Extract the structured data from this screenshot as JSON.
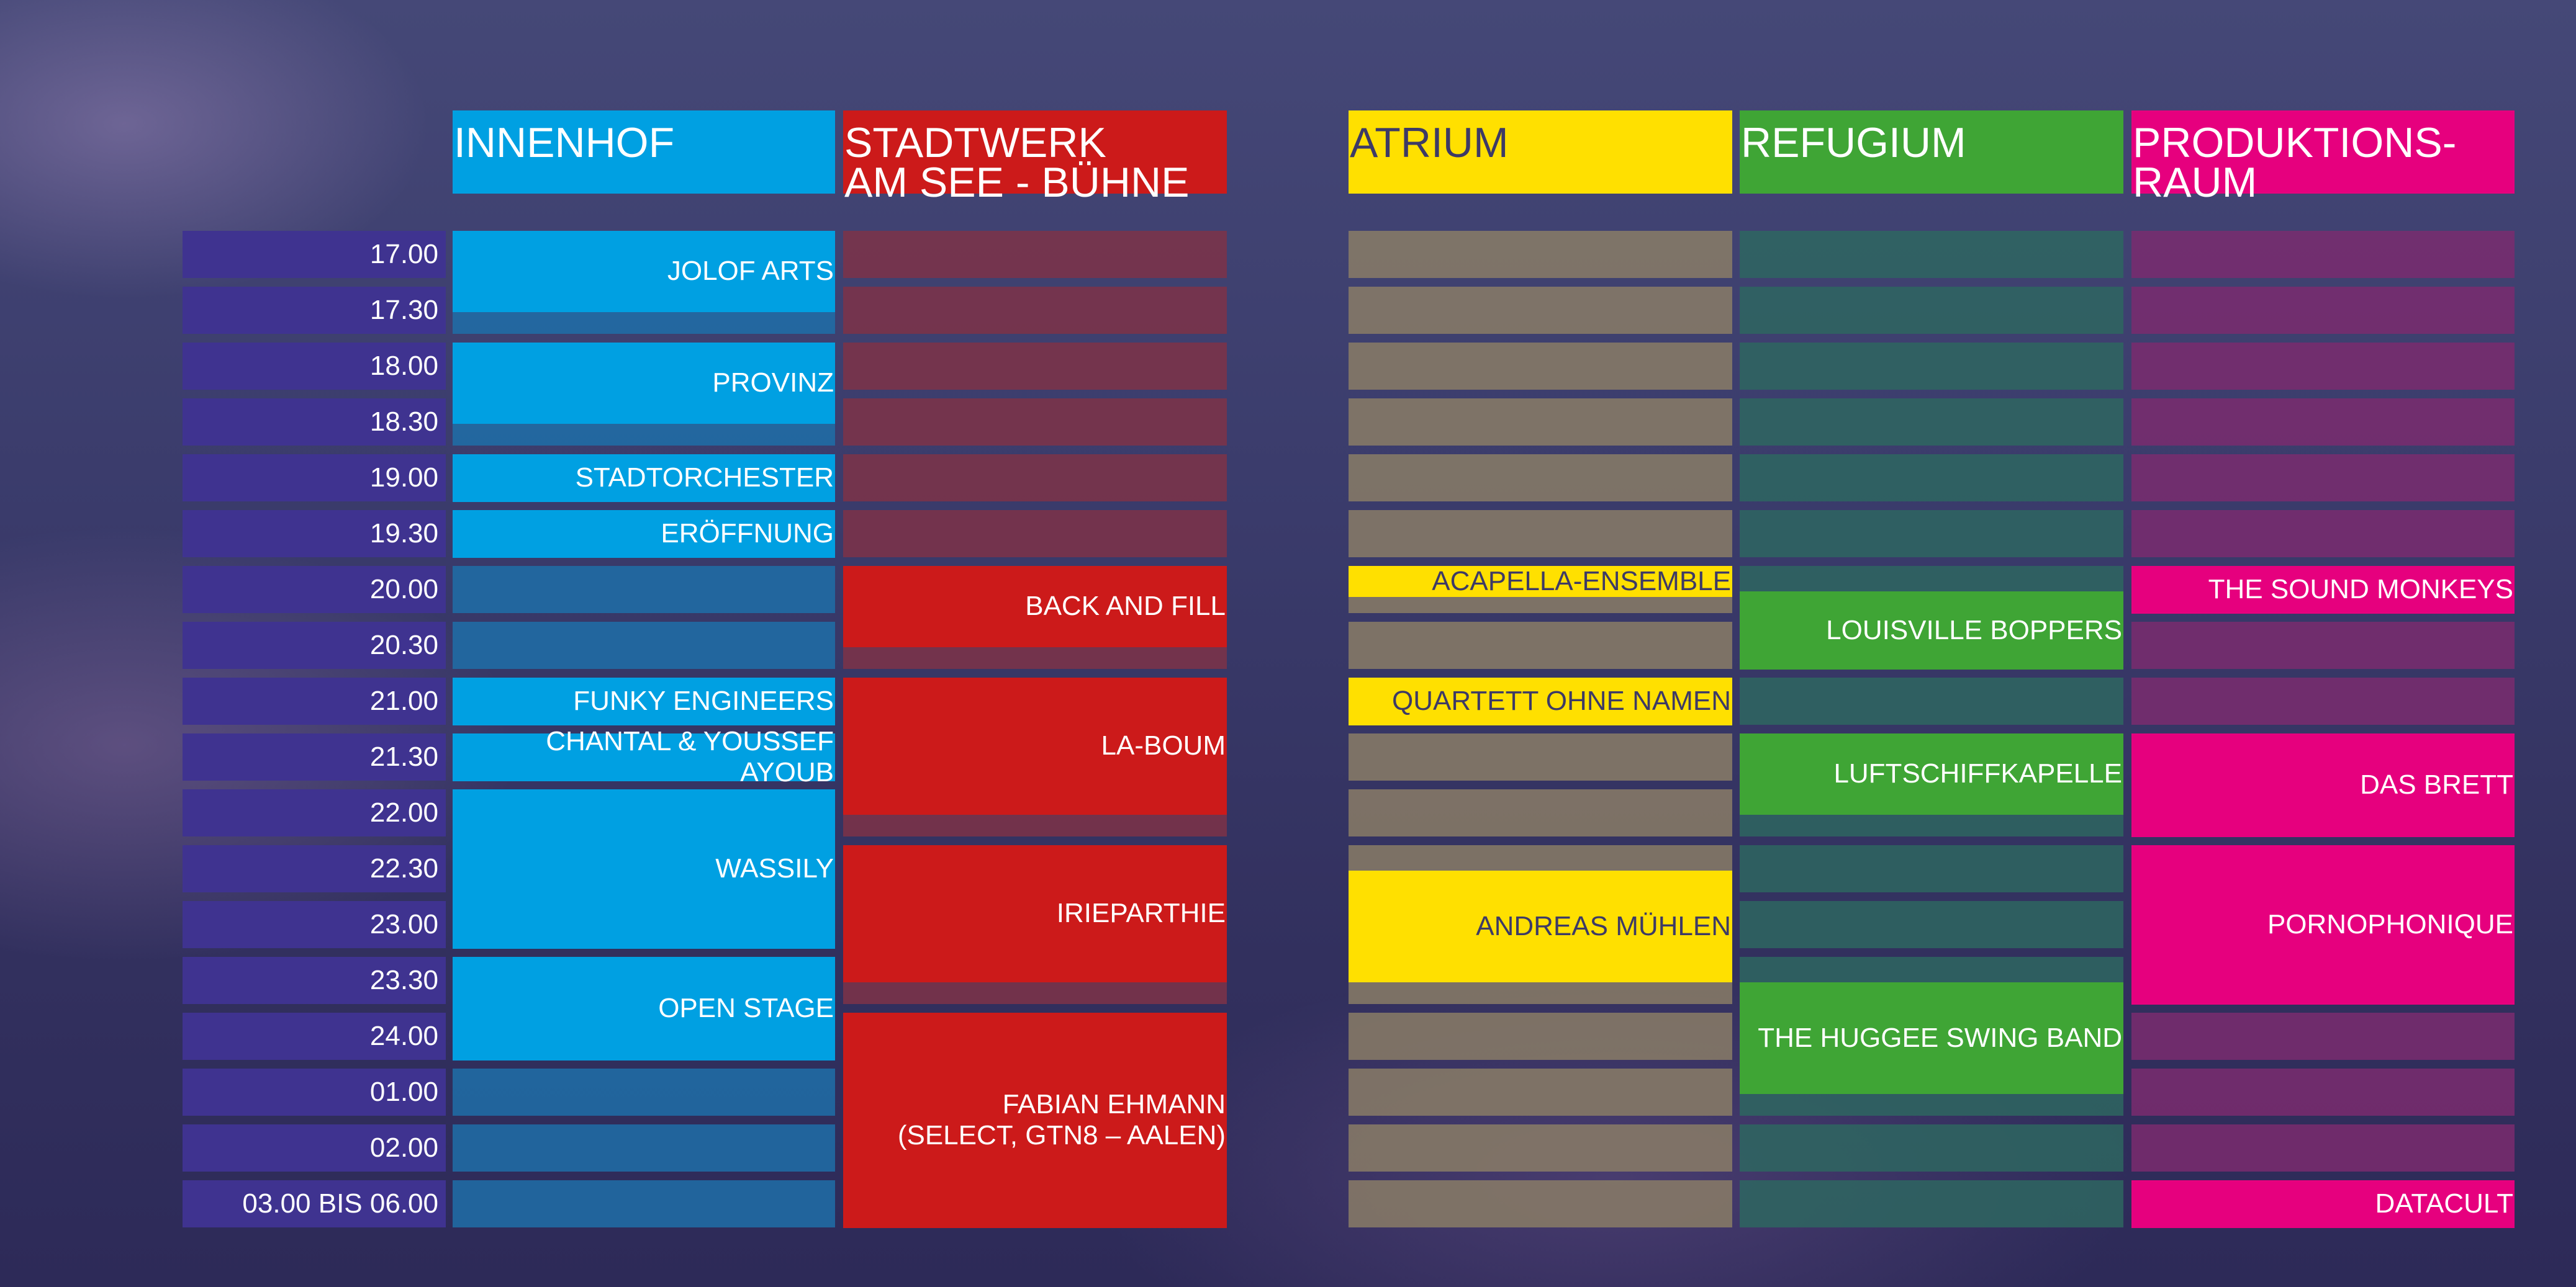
{
  "stages": [
    {
      "name": "INNENHOF",
      "color": "#00a0e2",
      "text_color": "#ffffff"
    },
    {
      "name": "STADTWERK\nAM SEE - BÜHNE",
      "color": "#cc1a1a",
      "text_color": "#ffffff"
    },
    {
      "name": "ATRIUM",
      "color": "#ffe000",
      "text_color": "#3d3a66"
    },
    {
      "name": "REFUGIUM",
      "color": "#3fa535",
      "text_color": "#ffffff"
    },
    {
      "name": "PRODUKTIONS-\nRAUM",
      "color": "#e6007e",
      "text_color": "#ffffff"
    }
  ],
  "times": [
    "17.00",
    "17.30",
    "18.00",
    "18.30",
    "19.00",
    "19.30",
    "20.00",
    "20.30",
    "21.00",
    "21.30",
    "22.00",
    "22.30",
    "23.00",
    "23.30",
    "24.00",
    "01.00",
    "02.00",
    "03.00 BIS 06.00"
  ],
  "events": {
    "innenhof": [
      {
        "label": "JOLOF ARTS",
        "start": 0,
        "end": 1.45
      },
      {
        "label": "PROVINZ",
        "start": 2,
        "end": 3.45
      },
      {
        "label": "STADTORCHESTER",
        "start": 4,
        "end": 4.85
      },
      {
        "label": "ERÖFFNUNG",
        "start": 5,
        "end": 5.85
      },
      {
        "label": "FUNKY ENGINEERS",
        "start": 8,
        "end": 8.85
      },
      {
        "label": "CHANTAL & YOUSSEF AYOUB",
        "start": 9,
        "end": 9.85
      },
      {
        "label": "WASSILY",
        "start": 10,
        "end": 12.85
      },
      {
        "label": "OPEN STAGE",
        "start": 13,
        "end": 14.85
      }
    ],
    "stadtwerk": [
      {
        "label": "BACK AND FILL",
        "start": 6,
        "end": 7.45
      },
      {
        "label": "LA-BOUM",
        "start": 8,
        "end": 10.45
      },
      {
        "label": "IRIEPARTHIE",
        "start": 11,
        "end": 13.45
      },
      {
        "label": "FABIAN EHMANN\n(SELECT, GTN8 – AALEN)",
        "start": 14,
        "end": 17.85
      }
    ],
    "atrium": [
      {
        "label": "ACAPELLA-ENSEMBLE",
        "start": 6,
        "end": 6.55
      },
      {
        "label": "QUARTETT OHNE NAMEN",
        "start": 8,
        "end": 8.85
      },
      {
        "label": "ANDREAS MÜHLEN",
        "start": 11.45,
        "end": 13.45
      }
    ],
    "refugium": [
      {
        "label": "LOUISVILLE BOPPERS",
        "start": 6.45,
        "end": 7.85
      },
      {
        "label": "LUFTSCHIFFKAPELLE",
        "start": 9,
        "end": 10.45
      },
      {
        "label": "THE HUGGEE SWING BAND",
        "start": 13.45,
        "end": 15.45
      }
    ],
    "produktionsraum": [
      {
        "label": "THE SOUND MONKEYS",
        "start": 6,
        "end": 6.85
      },
      {
        "label": "DAS BRETT",
        "start": 9,
        "end": 10.85
      },
      {
        "label": "PORNOPHONIQUE",
        "start": 11,
        "end": 13.85
      },
      {
        "label": "DATACULT",
        "start": 17,
        "end": 17.85
      }
    ]
  },
  "empty_colors": {
    "innenhof": "#1f6ea8",
    "stadtwerk": "#7e3248",
    "atrium": "#8a7c66",
    "refugium": "#2e6660",
    "produktionsraum": "#7a2c6e"
  }
}
